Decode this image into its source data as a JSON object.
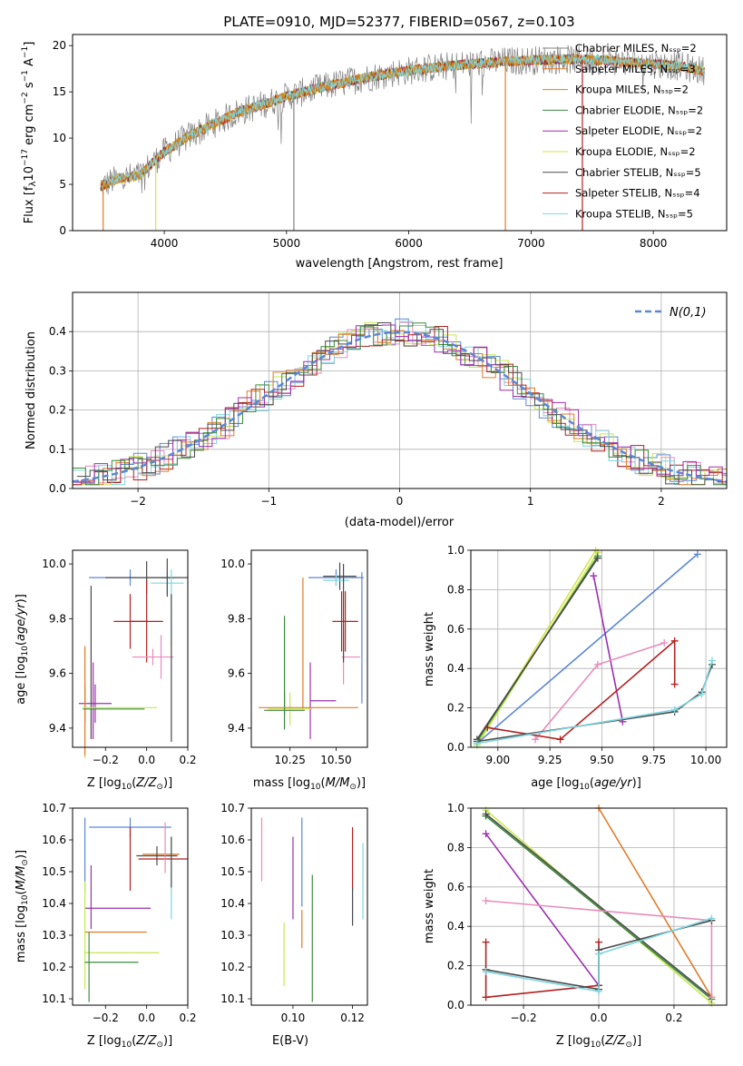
{
  "figure_title": "PLATE=0910, MJD=52377, FIBERID=0567, z=0.103",
  "colors": [
    "#808080",
    "#e07b2a",
    "#cc8e19",
    "#3e8a3e",
    "#9b2fae",
    "#d9e24e",
    "#4a4a4a",
    "#b22222",
    "#7fd5e0",
    "#5b87d6",
    "#e88bbb",
    "#c4e84e"
  ],
  "chart_data": [
    {
      "type": "line",
      "title": "PLATE=0910, MJD=52377, FIBERID=0567, z=0.103",
      "xlabel": "wavelength [Angstrom, rest frame]",
      "ylabel": "Flux [f_λ 10^-17 erg cm^-2 s^-1 A^-1]",
      "xlim": [
        3250,
        8600
      ],
      "ylim": [
        0,
        21.2
      ],
      "xticks": [
        "4000",
        "5000",
        "6000",
        "7000",
        "8000"
      ],
      "yticks": [
        "0",
        "5",
        "10",
        "15",
        "20"
      ],
      "grid": false,
      "legend_position": "upper-right",
      "continuum": {
        "x": [
          3480,
          3600,
          3800,
          4000,
          4200,
          4400,
          4600,
          4800,
          5000,
          5200,
          5400,
          5600,
          5800,
          6000,
          6200,
          6400,
          6600,
          6800,
          7000,
          7200,
          7400,
          7600,
          7800,
          8000,
          8200,
          8400
        ],
        "y": [
          4.8,
          5.5,
          6.0,
          8.5,
          10.2,
          11.5,
          12.8,
          13.6,
          14.5,
          15.2,
          15.8,
          16.4,
          16.9,
          17.3,
          17.6,
          17.9,
          18.1,
          18.3,
          18.4,
          18.5,
          18.5,
          18.4,
          18.2,
          18.0,
          17.8,
          17.3
        ]
      },
      "series": [
        {
          "name": "Chabrier MILES, N_SSP=2",
          "color": "#808080"
        },
        {
          "name": "Salpeter MILES, N_SSP=3",
          "color": "#e07b2a"
        },
        {
          "name": "Kroupa MILES, N_SSP=2",
          "color": "#cc8e19"
        },
        {
          "name": "Chabrier ELODIE, N_SSP=2",
          "color": "#3e8a3e"
        },
        {
          "name": "Salpeter ELODIE, N_SSP=2",
          "color": "#9b2fae"
        },
        {
          "name": "Kroupa ELODIE, N_SSP=2",
          "color": "#d9e24e"
        },
        {
          "name": "Chabrier STELIB, N_SSP=5",
          "color": "#4a4a4a"
        },
        {
          "name": "Salpeter STELIB, N_SSP=4",
          "color": "#b22222"
        },
        {
          "name": "Kroupa STELIB, N_SSP=5",
          "color": "#7fd5e0"
        }
      ]
    },
    {
      "type": "bar",
      "xlabel": "(data-model)/error",
      "ylabel": "Normed distribution",
      "xlim": [
        -2.5,
        2.5
      ],
      "ylim": [
        0,
        0.5
      ],
      "xticks": [
        "−2",
        "−1",
        "0",
        "1",
        "2"
      ],
      "yticks": [
        "0.0",
        "0.1",
        "0.2",
        "0.3",
        "0.4"
      ],
      "grid": true,
      "legend_position": "upper-right",
      "legend_label": "N(0,1)",
      "gaussian": {
        "mean": 0,
        "sigma": 1,
        "color": "#5b87d6"
      },
      "bin_width": 0.1,
      "step_colors": [
        "#5b87d6",
        "#e88bbb",
        "#c4e84e",
        "#b22222",
        "#7fd5e0",
        "#e07b2a",
        "#9b2fae",
        "#3e8a3e",
        "#4a4a4a"
      ]
    },
    {
      "type": "scatter",
      "xlabel": "Z [log10(Z/Z⊙)]",
      "ylabel": "age [log10(age/yr)]",
      "xlim": [
        -0.36,
        0.2
      ],
      "ylim": [
        9.33,
        10.05
      ],
      "xticks": [
        "−0.2",
        "0.0",
        "0.2"
      ],
      "xtick_values": [
        -0.2,
        0.0,
        0.2
      ],
      "yticks": [
        "9.4",
        "9.6",
        "9.8",
        "10.0"
      ],
      "ytick_values": [
        9.4,
        9.6,
        9.8,
        10.0
      ],
      "crosses": [
        {
          "x": -0.08,
          "y": 9.95,
          "xerr": 0.2,
          "yerr": 0.03,
          "color": "#5b87d6"
        },
        {
          "x": 0.0,
          "y": 9.95,
          "xerr": 0.2,
          "yerr": 0.06,
          "color": "#4a4a4a"
        },
        {
          "x": 0.1,
          "y": 9.93,
          "xerr": 0.08,
          "yerr": 0.04,
          "color": "#7fd5e0"
        },
        {
          "x": 0.1,
          "y": 9.95,
          "xerr": 0.03,
          "yerr": 0.07,
          "color": "#4a4a4a"
        },
        {
          "x": -0.08,
          "y": 9.79,
          "xerr": 0.08,
          "yerr": 0.1,
          "color": "#b22222"
        },
        {
          "x": 0.0,
          "y": 9.79,
          "xerr": 0.08,
          "yerr": 0.15,
          "color": "#b22222"
        },
        {
          "x": 0.03,
          "y": 9.66,
          "xerr": 0.1,
          "yerr": 0.03,
          "color": "#e88bbb"
        },
        {
          "x": 0.07,
          "y": 9.66,
          "xerr": 0.01,
          "yerr": 0.08,
          "color": "#e88bbb"
        },
        {
          "x": 0.12,
          "y": 9.84,
          "xerr": 0.01,
          "yerr": 0.14,
          "color": "#7fd5e0"
        },
        {
          "x": -0.25,
          "y": 9.49,
          "xerr": 0.08,
          "yerr": 0.07,
          "color": "#9b2fae"
        },
        {
          "x": -0.3,
          "y": 9.49,
          "xerr": 0.01,
          "yerr": 0.07,
          "color": "#9b2fae"
        },
        {
          "x": -0.26,
          "y": 9.5,
          "xerr": 0.01,
          "yerr": 0.14,
          "color": "#9b2fae"
        },
        {
          "x": -0.3,
          "y": 9.49,
          "xerr": 0.01,
          "yerr": 0.2,
          "color": "#c4e84e"
        },
        {
          "x": -0.3,
          "y": 9.5,
          "xerr": 0.01,
          "yerr": 0.2,
          "color": "#e07b2a"
        },
        {
          "x": -0.27,
          "y": 9.64,
          "xerr": 0.01,
          "yerr": 0.28,
          "color": "#4a4a4a"
        },
        {
          "x": -0.13,
          "y": 9.475,
          "xerr": 0.18,
          "yerr": 0.01,
          "color": "#c4e84e"
        },
        {
          "x": -0.16,
          "y": 9.47,
          "xerr": 0.15,
          "yerr": 0.01,
          "color": "#3e8a3e"
        },
        {
          "x": 0.12,
          "y": 9.62,
          "xerr": 0.01,
          "yerr": 0.27,
          "color": "#4a4a4a"
        }
      ]
    },
    {
      "type": "scatter",
      "xlabel": "mass [log10(M/M⊙)]",
      "ylabel": "",
      "xlim": [
        10.04,
        10.67
      ],
      "ylim": [
        9.33,
        10.05
      ],
      "xticks": [
        "10.25",
        "10.50"
      ],
      "xtick_values": [
        10.25,
        10.5
      ],
      "yticks": [
        "9.4",
        "9.6",
        "9.8",
        "10.0"
      ],
      "ytick_values": [
        9.4,
        9.6,
        9.8,
        10.0
      ],
      "crosses": [
        {
          "x": 10.5,
          "y": 9.95,
          "xerr": 0.15,
          "yerr": 0.03,
          "color": "#5b87d6"
        },
        {
          "x": 10.64,
          "y": 9.73,
          "xerr": 0.01,
          "yerr": 0.24,
          "color": "#5b87d6"
        },
        {
          "x": 10.52,
          "y": 9.955,
          "xerr": 0.09,
          "yerr": 0.05,
          "color": "#4a4a4a"
        },
        {
          "x": 10.5,
          "y": 9.94,
          "xerr": 0.07,
          "yerr": 0.02,
          "color": "#7fd5e0"
        },
        {
          "x": 10.55,
          "y": 9.79,
          "xerr": 0.07,
          "yerr": 0.11,
          "color": "#b22222"
        },
        {
          "x": 10.53,
          "y": 9.79,
          "xerr": 0.01,
          "yerr": 0.11,
          "color": "#b22222"
        },
        {
          "x": 10.58,
          "y": 9.66,
          "xerr": 0.05,
          "yerr": 0.01,
          "color": "#e88bbb"
        },
        {
          "x": 10.54,
          "y": 9.66,
          "xerr": 0.01,
          "yerr": 0.1,
          "color": "#e88bbb"
        },
        {
          "x": 10.32,
          "y": 9.71,
          "xerr": 0.01,
          "yerr": 0.24,
          "color": "#e07b2a"
        },
        {
          "x": 10.36,
          "y": 9.5,
          "xerr": 0.01,
          "yerr": 0.14,
          "color": "#9b2fae"
        },
        {
          "x": 10.43,
          "y": 9.5,
          "xerr": 0.07,
          "yerr": 0.01,
          "color": "#9b2fae"
        },
        {
          "x": 10.22,
          "y": 9.63,
          "xerr": 0.01,
          "yerr": 0.18,
          "color": "#3e8a3e"
        },
        {
          "x": 10.25,
          "y": 9.47,
          "xerr": 0.12,
          "yerr": 0.06,
          "color": "#c4e84e"
        },
        {
          "x": 10.22,
          "y": 9.465,
          "xerr": 0.11,
          "yerr": 0.07,
          "color": "#3e8a3e"
        },
        {
          "x": 10.35,
          "y": 9.475,
          "xerr": 0.27,
          "yerr": 0.01,
          "color": "#e07b2a"
        },
        {
          "x": 10.54,
          "y": 9.82,
          "xerr": 0.01,
          "yerr": 0.18,
          "color": "#4a4a4a"
        }
      ]
    },
    {
      "type": "line",
      "xlabel": "age [log10(age/yr)]",
      "ylabel": "mass weight",
      "xlim": [
        8.87,
        10.1
      ],
      "ylim": [
        0,
        1
      ],
      "xticks": [
        "9.00",
        "9.25",
        "9.50",
        "9.75",
        "10.00"
      ],
      "xtick_values": [
        9.0,
        9.25,
        9.5,
        9.75,
        10.0
      ],
      "yticks": [
        "0.0",
        "0.2",
        "0.4",
        "0.6",
        "0.8",
        "1.0"
      ],
      "ytick_values": [
        0,
        0.2,
        0.4,
        0.6,
        0.8,
        1.0
      ],
      "grid": true,
      "series": [
        {
          "color": "#c4e84e",
          "x": [
            8.9,
            9.48
          ],
          "y": [
            0.01,
            0.99
          ]
        },
        {
          "color": "#d9e24e",
          "x": [
            8.9,
            9.47
          ],
          "y": [
            0.02,
            1.0
          ]
        },
        {
          "color": "#3e8a3e",
          "x": [
            8.9,
            9.48
          ],
          "y": [
            0.03,
            0.97
          ]
        },
        {
          "color": "#4a4a4a",
          "x": [
            8.9,
            9.48
          ],
          "y": [
            0.04,
            0.96
          ]
        },
        {
          "color": "#5b87d6",
          "x": [
            8.9,
            9.96
          ],
          "y": [
            0.02,
            0.98
          ]
        },
        {
          "color": "#9b2fae",
          "x": [
            9.46,
            9.6
          ],
          "y": [
            0.87,
            0.13
          ]
        },
        {
          "color": "#e88bbb",
          "x": [
            9.18,
            9.48,
            9.8
          ],
          "y": [
            0.04,
            0.42,
            0.53
          ]
        },
        {
          "color": "#b22222",
          "x": [
            8.95,
            9.3,
            9.85,
            9.85
          ],
          "y": [
            0.1,
            0.04,
            0.54,
            0.32
          ]
        },
        {
          "color": "#4a4a4a",
          "x": [
            8.9,
            9.85,
            9.98,
            10.03
          ],
          "y": [
            0.03,
            0.18,
            0.28,
            0.42
          ]
        },
        {
          "color": "#7fd5e0",
          "x": [
            8.9,
            9.85,
            9.98,
            10.03
          ],
          "y": [
            0.02,
            0.19,
            0.27,
            0.44
          ]
        }
      ]
    },
    {
      "type": "scatter",
      "xlabel": "Z [log10(Z/Z⊙)]",
      "ylabel": "mass [log10(M/M⊙)]",
      "xlim": [
        -0.36,
        0.2
      ],
      "ylim": [
        10.08,
        10.7
      ],
      "xticks": [
        "−0.2",
        "0.0",
        "0.2"
      ],
      "xtick_values": [
        -0.2,
        0.0,
        0.2
      ],
      "yticks": [
        "10.1",
        "10.2",
        "10.3",
        "10.4",
        "10.5",
        "10.6",
        "10.7"
      ],
      "ytick_values": [
        10.1,
        10.2,
        10.3,
        10.4,
        10.5,
        10.6,
        10.7
      ],
      "crosses": [
        {
          "x": -0.08,
          "y": 10.64,
          "xerr": 0.2,
          "yerr": 0.03,
          "color": "#5b87d6"
        },
        {
          "x": -0.3,
          "y": 10.55,
          "xerr": 0.01,
          "yerr": 0.12,
          "color": "#5b87d6"
        },
        {
          "x": 0.07,
          "y": 10.555,
          "xerr": 0.09,
          "yerr": 0.01,
          "color": "#e07b2a"
        },
        {
          "x": 0.05,
          "y": 10.55,
          "xerr": 0.1,
          "yerr": 0.03,
          "color": "#4a4a4a"
        },
        {
          "x": 0.08,
          "y": 10.54,
          "xerr": 0.12,
          "yerr": 0.01,
          "color": "#b22222"
        },
        {
          "x": -0.08,
          "y": 10.54,
          "xerr": 0.01,
          "yerr": 0.1,
          "color": "#b22222"
        },
        {
          "x": 0.09,
          "y": 10.575,
          "xerr": 0.01,
          "yerr": 0.08,
          "color": "#e88bbb"
        },
        {
          "x": 0.12,
          "y": 10.48,
          "xerr": 0.01,
          "yerr": 0.13,
          "color": "#7fd5e0"
        },
        {
          "x": 0.12,
          "y": 10.53,
          "xerr": 0.01,
          "yerr": 0.08,
          "color": "#4a4a4a"
        },
        {
          "x": -0.14,
          "y": 10.385,
          "xerr": 0.16,
          "yerr": 0.01,
          "color": "#9b2fae"
        },
        {
          "x": -0.27,
          "y": 10.42,
          "xerr": 0.01,
          "yerr": 0.1,
          "color": "#9b2fae"
        },
        {
          "x": -0.15,
          "y": 10.31,
          "xerr": 0.15,
          "yerr": 0.01,
          "color": "#e07b2a"
        },
        {
          "x": -0.12,
          "y": 10.245,
          "xerr": 0.18,
          "yerr": 0.01,
          "color": "#c4e84e"
        },
        {
          "x": -0.3,
          "y": 10.3,
          "xerr": 0.01,
          "yerr": 0.17,
          "color": "#c4e84e"
        },
        {
          "x": -0.17,
          "y": 10.215,
          "xerr": 0.13,
          "yerr": 0.01,
          "color": "#3e8a3e"
        },
        {
          "x": -0.28,
          "y": 10.2,
          "xerr": 0.01,
          "yerr": 0.11,
          "color": "#3e8a3e"
        }
      ]
    },
    {
      "type": "scatter",
      "xlabel": "E(B-V)",
      "ylabel": "",
      "xlim": [
        0.086,
        0.125
      ],
      "ylim": [
        10.08,
        10.7
      ],
      "xticks": [
        "0.10",
        "0.12"
      ],
      "xtick_values": [
        0.1,
        0.12
      ],
      "yticks": [
        "10.1",
        "10.2",
        "10.3",
        "10.4",
        "10.5",
        "10.6",
        "10.7"
      ],
      "ytick_values": [
        10.1,
        10.2,
        10.3,
        10.4,
        10.5,
        10.6,
        10.7
      ],
      "crosses": [
        {
          "x": 0.0895,
          "y": 10.57,
          "xerr": 0,
          "yerr": 0.1,
          "color": "#e88bbb"
        },
        {
          "x": 0.097,
          "y": 10.24,
          "xerr": 0,
          "yerr": 0.1,
          "color": "#c4e84e"
        },
        {
          "x": 0.1,
          "y": 10.48,
          "xerr": 0,
          "yerr": 0.13,
          "color": "#9b2fae"
        },
        {
          "x": 0.103,
          "y": 10.53,
          "xerr": 0,
          "yerr": 0.14,
          "color": "#5b87d6"
        },
        {
          "x": 0.103,
          "y": 10.32,
          "xerr": 0,
          "yerr": 0.06,
          "color": "#e07b2a"
        },
        {
          "x": 0.1065,
          "y": 10.29,
          "xerr": 0,
          "yerr": 0.2,
          "color": "#3e8a3e"
        },
        {
          "x": 0.12,
          "y": 10.54,
          "xerr": 0,
          "yerr": 0.1,
          "color": "#b22222"
        },
        {
          "x": 0.12,
          "y": 10.39,
          "xerr": 0,
          "yerr": 0.06,
          "color": "#4a4a4a"
        },
        {
          "x": 0.1235,
          "y": 10.47,
          "xerr": 0,
          "yerr": 0.12,
          "color": "#7fd5e0"
        }
      ]
    },
    {
      "type": "line",
      "xlabel": "Z [log10(Z/Z⊙)]",
      "ylabel": "mass weight",
      "xlim": [
        -0.34,
        0.34
      ],
      "ylim": [
        0,
        1
      ],
      "xticks": [
        "−0.2",
        "0.0",
        "0.2"
      ],
      "xtick_values": [
        -0.2,
        0.0,
        0.2
      ],
      "yticks": [
        "0.0",
        "0.2",
        "0.4",
        "0.6",
        "0.8",
        "1.0"
      ],
      "ytick_values": [
        0,
        0.2,
        0.4,
        0.6,
        0.8,
        1.0
      ],
      "grid": true,
      "series": [
        {
          "color": "#c4e84e",
          "x": [
            -0.3,
            0.3
          ],
          "y": [
            0.99,
            0.01
          ]
        },
        {
          "color": "#3e8a3e",
          "x": [
            -0.3,
            0.3
          ],
          "y": [
            0.96,
            0.03
          ]
        },
        {
          "color": "#4a4a4a",
          "x": [
            -0.3,
            0.3
          ],
          "y": [
            0.97,
            0.04
          ]
        },
        {
          "color": "#9b2fae",
          "x": [
            -0.3,
            0.0
          ],
          "y": [
            0.87,
            0.1
          ]
        },
        {
          "color": "#e07b2a",
          "x": [
            0.0,
            0.3
          ],
          "y": [
            1.0,
            0.04
          ]
        },
        {
          "color": "#e88bbb",
          "x": [
            -0.3,
            0.3,
            0.3
          ],
          "y": [
            0.53,
            0.43,
            0.04
          ]
        },
        {
          "color": "#b22222",
          "x": [
            -0.3,
            -0.3,
            0.0,
            0.0
          ],
          "y": [
            0.32,
            0.04,
            0.1,
            0.32
          ]
        },
        {
          "color": "#4a4a4a",
          "x": [
            -0.3,
            0.0,
            0.0,
            0.3
          ],
          "y": [
            0.18,
            0.08,
            0.28,
            0.43
          ]
        },
        {
          "color": "#7fd5e0",
          "x": [
            -0.3,
            0.0,
            0.0,
            0.3
          ],
          "y": [
            0.17,
            0.07,
            0.26,
            0.44
          ]
        }
      ]
    }
  ]
}
